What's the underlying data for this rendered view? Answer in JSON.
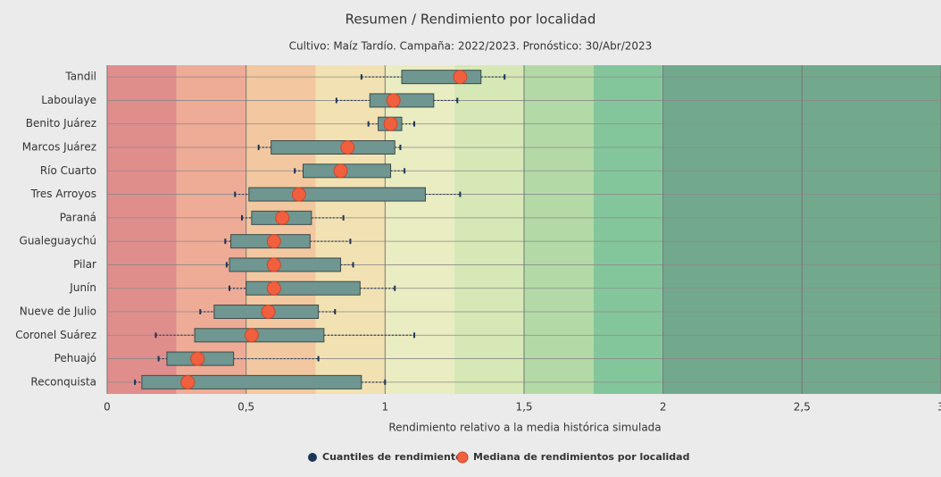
{
  "chart_data": {
    "type": "boxplot",
    "title": "Resumen / Rendimiento por localidad",
    "subtitle": "Cultivo: Maíz Tardío. Campaña: 2022/2023. Pronóstico: 30/Abr/2023",
    "x_label": "Rendimiento relativo a la media histórica simulada",
    "categories": [
      "Tandil",
      "Laboulaye",
      "Benito Juárez",
      "Marcos Juárez",
      "Río Cuarto",
      "Tres Arroyos",
      "Paraná",
      "Gualeguaychú",
      "Pilar",
      "Junín",
      "Nueve de Julio",
      "Coronel Suárez",
      "Pehuajó",
      "Reconquista"
    ],
    "series": [
      {
        "name": "Cuantiles de rendimiento",
        "color": "#6f9691",
        "marker_color": "#1d3557",
        "low": [
          0.915,
          0.825,
          0.94,
          0.545,
          0.675,
          0.46,
          0.485,
          0.425,
          0.43,
          0.44,
          0.335,
          0.175,
          0.185,
          0.1
        ],
        "q1": [
          1.06,
          0.945,
          0.975,
          0.59,
          0.705,
          0.51,
          0.52,
          0.445,
          0.44,
          0.5,
          0.385,
          0.315,
          0.215,
          0.125
        ],
        "q3": [
          1.345,
          1.175,
          1.06,
          1.035,
          1.02,
          1.145,
          0.735,
          0.73,
          0.84,
          0.91,
          0.76,
          0.78,
          0.455,
          0.915
        ],
        "high": [
          1.43,
          1.26,
          1.105,
          1.055,
          1.07,
          1.27,
          0.85,
          0.875,
          0.885,
          1.035,
          0.82,
          1.105,
          0.76,
          1.0
        ]
      },
      {
        "name": "Mediana de rendimientos por localidad",
        "color": "#f0603f",
        "values": [
          1.27,
          1.03,
          1.02,
          0.865,
          0.84,
          0.69,
          0.63,
          0.6,
          0.6,
          0.6,
          0.58,
          0.52,
          0.325,
          0.29
        ]
      }
    ],
    "bands": [
      {
        "from": 0,
        "to": 0.25,
        "color": "#e08e8c"
      },
      {
        "from": 0.25,
        "to": 0.5,
        "color": "#eeab96"
      },
      {
        "from": 0.5,
        "to": 0.75,
        "color": "#f3c8a0"
      },
      {
        "from": 0.75,
        "to": 1,
        "color": "#f2e2b3"
      },
      {
        "from": 1,
        "to": 1.25,
        "color": "#eaecc1"
      },
      {
        "from": 1.25,
        "to": 1.5,
        "color": "#d6e8b5"
      },
      {
        "from": 1.5,
        "to": 1.75,
        "color": "#b3daa6"
      },
      {
        "from": 1.75,
        "to": 2,
        "color": "#84c69b"
      },
      {
        "from": 2,
        "to": 3,
        "color": "#72a98d"
      }
    ],
    "xlim": [
      0,
      3
    ],
    "xticks": [
      0,
      {
        "value": 0.5,
        "label": "0,5"
      },
      1,
      {
        "value": 1.5,
        "label": "1,5"
      },
      2,
      {
        "value": 2.5,
        "label": "2,5"
      },
      3
    ],
    "grid": true
  }
}
